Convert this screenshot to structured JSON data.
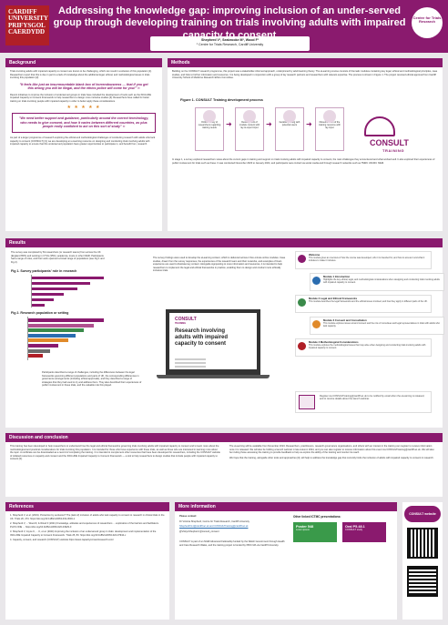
{
  "header": {
    "logo_lines": [
      "CARDIFF",
      "UNIVERSITY",
      "PRIFYSGOL",
      "CAERDYDD"
    ],
    "title": "Addressing the knowledge gap: improving inclusion of an under-served group through developing training on trials involving adults with impaired capacity to consent",
    "authors": "Shepherd V¹, Seabrooke M¹, Wood F¹",
    "affiliation": "¹ Centre for Trials Research, Cardiff University",
    "badge": "Centre for Trials Research"
  },
  "background": {
    "heading": "Background",
    "p1": "Trials involving adults with impaired capacity to consent are known to be challenging, which can result in exclusion of this population [1]. Researchers report that this is due in part to a lack of knowledge about the additional legal, ethical, and methodological issues in trials involving this population [2].",
    "quote1": "\"It feels like just an insurmountable blank box of horrendousness — that if you get this wrong you will be illegal, and the ethics police will come for you!\" ∞",
    "p2": "Recent initiatives to improve the inclusion of underserved groups in trials have included the development of tools such as the INCLUDE Impaired Capacity to Consent Framework to help researchers to design more inclusive studies [3]. Researchers have called for better training on trials involving people with impaired capacity in order to better apply these considerations.",
    "stars": "★ ★ ★ ★ ★",
    "quote2": "\"We need better support and guidance, particularly around the correct terminology, who needs to give consent, and how it varies between different countries, as plus people really confident to act on this sort of study\" ∞",
    "p3": "As part of a larger programme of research exploring the ethical and methodological challenges of conducting research with adults who lack capacity to consent (CONSULT) [4], we are developing an e-learning resource on designing and conducting trials involving adults with impaired capacity to ensure that this underserved population have greater opportunities to participate in, and benefit from, research."
  },
  "methods": {
    "heading": "Methods",
    "p1": "Building on the CONSULT research programme, this project was a stakeholder-informed approach, underpinned by adult learning theory. The eLearning course consists of thematic modules containing key legal, ethical and methodological principles, case studies, and links to further information and resources. It is being developed in conjunction with a group of lay research partners and researchers with relevant expertise. The process is shown in Figure 1. The project received ethical approval from Cardiff University School of Medicine Research Ethics Committee.",
    "fig_title": "Figure 1. CONSULT Training development process",
    "steps": [
      "Online survey of researchers regarding training needs",
      "Development of module content with lay & expert input",
      "Iterative piloting with potential users",
      "Dissemination of the training resource with lay input"
    ],
    "consult_logo": "CONSULT",
    "consult_sub": "TRAINING",
    "p2": "In stage 1, a survey explored researchers views about the current gaps in training and support on trials involving adults with impaired capacity to consent, the main challenges they encountered and what worked well. It also explored their experiences of public involvement for trials such as these. It was conducted November 2023 to January 2024, and participants were invited via social media and through research networks such as TMRC UKCRC NIHR."
  },
  "results": {
    "heading": "Results",
    "p1": "The survey was completed by 81 researchers (or research teams) from across the UK (England 65%) and working in CTUs (35%), academia, trusts or other NIHR. Participants had a range of roles, and their work spanned a broad range of populations (see Fig 1 and Fig 2).",
    "fig1_title": "Fig 1. Survey participants' role in research",
    "fig1_chart": {
      "type": "bar",
      "categories": [
        "",
        "",
        "",
        "",
        "",
        ""
      ],
      "values": [
        22,
        18,
        14,
        10,
        7,
        4
      ]
    },
    "fig2_title": "Fig 2. Research population or setting",
    "fig2_chart": {
      "type": "bar",
      "categories": [
        "",
        "",
        "",
        "",
        "",
        "",
        "",
        ""
      ],
      "values": [
        30,
        26,
        22,
        19,
        16,
        12,
        9,
        6
      ],
      "colors": [
        "#8a1a6e",
        "#b0508f",
        "#3a8a4a",
        "#2b6db0",
        "#e08a2b",
        "#8a1a6e",
        "#6c6c6c",
        "#b01f27"
      ]
    },
    "p2": "Participants described a range of challenges, including the differences between the legal frameworks governing different populations and parts of UK, the corresponding differences in governance arrangements (including ethical approvals), and they described a range of strategies that they had used to try and address them. They also described their experiences of public involvement in these trials, and the valuable role this played.",
    "p3": "The survey findings were used to develop the eLearning content, which is delivered across 4 five-minute online modules. Case studies, drawn from the survey responses, the experiences of the research team and their networks, and examples of lived-experience are used to illustrate key content. Alongside signposting to more information and resources, it is intended to help researchers to implement the legal and ethical frameworks in practice, enabling them to design and conduct more ethically inclusive trials.",
    "screen_logo": "CONSULT",
    "screen_logo_sub": "TRAINING",
    "screen_title": "Research involving adults with impaired capacity to consent",
    "modules": [
      {
        "title": "Welcome",
        "desc": "This module gives an overview of how the course was developed, who it is intended for, and how to access it and what it includes to make it inclusive.",
        "color": "#8a1a6e"
      },
      {
        "title": "Module 1 Introduction",
        "desc": "Highlights the key ethical, legal, and methodological considerations when designing and conducting trials involving adults with impaired capacity to consent.",
        "color": "#2b6db0"
      },
      {
        "title": "Module 2 Legal and Ethical Frameworks",
        "desc": "This module describes the legal frameworks and the ethical issues involved, and how they apply in different parts of the UK.",
        "color": "#3a8a4a"
      },
      {
        "title": "Module 3 Consent and Consultation",
        "desc": "This module explores issues around consent and the role of consultees and legal representatives in trials with adults who lack capacity.",
        "color": "#e08a2b"
      },
      {
        "title": "Module 4 Methodological Considerations",
        "desc": "This module explores the methodological issues that may arise when designing and conducting trials involving adults with impaired capacity to consent.",
        "color": "#b01f27"
      }
    ],
    "register_note": "Register via CONSULTtraining@cardiff.ac.uk to be notified by email when the eLearning is released, and to receive details about the launch webinar."
  },
  "discussion": {
    "heading": "Discussion and conclusion",
    "p1": "This training has been developed to help researchers to understand how the legal and ethical frameworks governing trials involving adults with impaired capacity to consent and to learn more about the methodological and practical considerations for trials involving this population. It is intended for those who have experience with these trials, as well as those who are interested in learning more about the topic. A certificate can be downloaded as a record of completing the training. It is intended to complement other resources that have been developed for researchers, including the CONSULT website of collated resources on capacity and consent and the INCLUDE Impaired Capacity to Consent Framework — a tool to help researchers to design studies that include people with impaired capacity to consent [3].",
    "p2": "The eLearning will be available from November 2024. Researchers, practitioners, research governance organisations, and others with an interest in the training can register to receive information once it is released. We will also be holding a launch webinar in late Autumn 2024, and you can also register to receive information about this event via CONSULTtraining@cardiff.ac.uk. We will also be inviting those accessing the training to provide feedback to help us explore the ability of the training and monitor its reach.",
    "p3": "We hope that the training, alongside other tools and approaches [3], will help to address the knowledge gap that currently limits the inclusion of adults with impaired capacity to consent in research."
  },
  "references": {
    "heading": "References",
    "items": [
      "1. Shepherd V, et al. (2019). Protection by exclusion? The (lack of) inclusion of adults who lack capacity to consent to research in clinical trials in the UK. Trials 20, 474. https://doi.org/10.1186/s13063-019-3603-1",
      "2. Shepherd V, ... Wood F, & Wood F (2021) Knowledge, attitudes and experiences of researchers ... exploration of the barriers and facilitators. PLOS ONE ... https://doi.org/10.1186/s13063-020-04929-0",
      "3. Shepherd V, Joyce K, ... K, et al. (2024) Improving the inclusion of an underserved group in trials: development and implementation of the INCLUDE Impaired Capacity to Consent Framework. Trials 25, 83. https://doi.org/10.1186/s13063-024-07944-x",
      "4. Capacity, consent, and research (CONSULT) website https://www.capacityconsentresearch.com/"
    ]
  },
  "more_info": {
    "heading": "More information",
    "contact_label": "Please contact:",
    "contact_name": "Dr Victoria Shepherd, Centre for Trials Research, Cardiff University",
    "contact_email": "ShepherdVL1@cardiff.ac.uk and CONSULTtraining@cardiff.ac.uk",
    "twitter": "@VickyLShepherd @consult_consent",
    "funding": "CONSULT is part of an NIHR Advanced Fellowship funded by the Welsh Government through Health and Care Research Wales, and the training project is funded by PRIC MA via Cardiff University.",
    "other_heading": "Other linked ICTMC presentations:",
    "poster1": "Poster 548",
    "poster1_sub": "Lorem ipsum",
    "poster2": "Oral P5.48.1",
    "poster2_sub": "CONSULT study",
    "website_label": "CONSULT website"
  }
}
